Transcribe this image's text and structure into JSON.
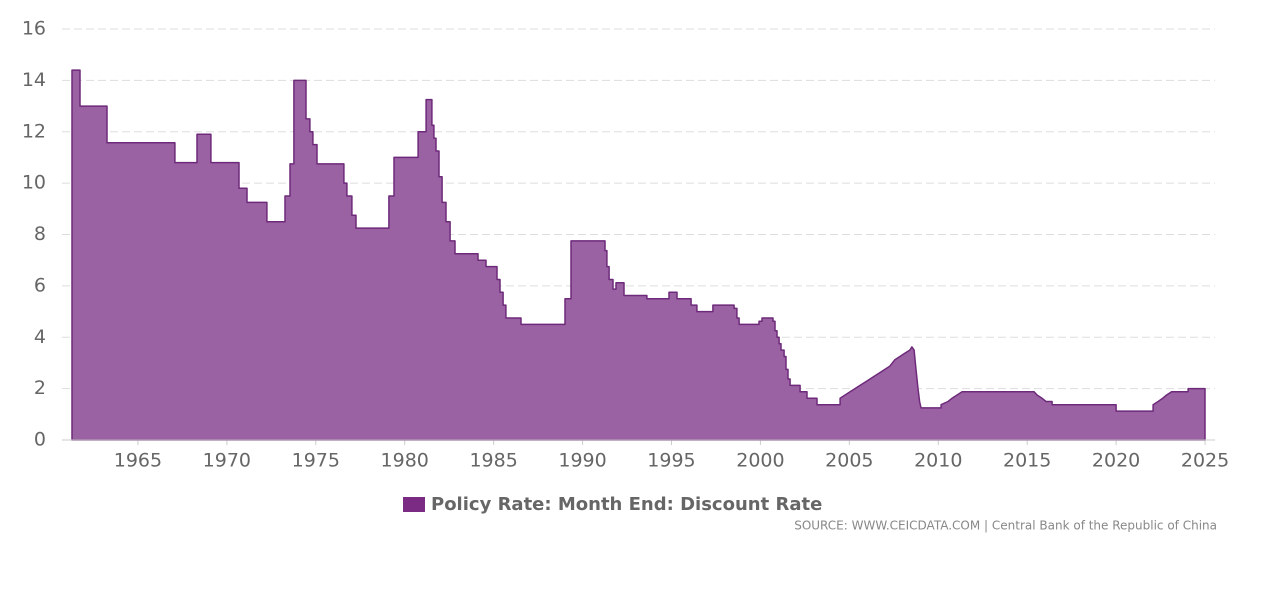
{
  "chart_data": {
    "type": "area",
    "x": [
      1961.29,
      1961.74,
      1961.74,
      1963.26,
      1963.26,
      1967.08,
      1967.08,
      1968.32,
      1968.32,
      1969.1,
      1969.1,
      1970.68,
      1970.68,
      1971.13,
      1971.13,
      1972.25,
      1972.25,
      1973.27,
      1973.27,
      1973.55,
      1973.55,
      1973.77,
      1973.77,
      1974.45,
      1974.45,
      1974.67,
      1974.67,
      1974.84,
      1974.84,
      1975.07,
      1975.07,
      1976.58,
      1976.58,
      1976.75,
      1976.75,
      1977.03,
      1977.03,
      1977.26,
      1977.26,
      1979.11,
      1979.11,
      1979.4,
      1979.4,
      1980.75,
      1980.75,
      1981.2,
      1981.2,
      1981.53,
      1981.53,
      1981.64,
      1981.64,
      1981.76,
      1981.76,
      1981.93,
      1981.93,
      1982.1,
      1982.1,
      1982.32,
      1982.32,
      1982.55,
      1982.55,
      1982.83,
      1982.83,
      1984.12,
      1984.12,
      1984.57,
      1984.57,
      1985.19,
      1985.19,
      1985.36,
      1985.36,
      1985.53,
      1985.53,
      1985.69,
      1985.69,
      1986.54,
      1986.54,
      1989.01,
      1989.01,
      1989.35,
      1989.35,
      1991.26,
      1991.26,
      1991.37,
      1991.37,
      1991.49,
      1991.49,
      1991.71,
      1991.71,
      1991.88,
      1991.88,
      1992.33,
      1992.33,
      1993.62,
      1993.62,
      1994.86,
      1994.86,
      1995.31,
      1995.31,
      1996.1,
      1996.1,
      1996.43,
      1996.43,
      1997.33,
      1997.33,
      1998.52,
      1998.52,
      1998.68,
      1998.68,
      1998.8,
      1998.8,
      1999.92,
      1999.92,
      2000.09,
      2000.09,
      2000.71,
      2000.71,
      2000.82,
      2000.82,
      2000.93,
      2000.93,
      2001.05,
      2001.05,
      2001.16,
      2001.16,
      2001.33,
      2001.33,
      2001.44,
      2001.44,
      2001.55,
      2001.55,
      2001.67,
      2001.67,
      2002.23,
      2002.23,
      2002.62,
      2002.62,
      2003.18,
      2003.18,
      2004.48,
      2004.48,
      2004.76,
      2005.04,
      2005.32,
      2005.6,
      2005.88,
      2006.16,
      2006.44,
      2006.72,
      2007.0,
      2007.28,
      2007.56,
      2007.84,
      2008.12,
      2008.4,
      2008.52,
      2008.64,
      2008.75,
      2008.86,
      2008.95,
      2009.03,
      2010.16,
      2010.16,
      2010.55,
      2010.77,
      2011.06,
      2011.34,
      2015.39,
      2015.55,
      2015.84,
      2016.06,
      2016.4,
      2016.4,
      2020.0,
      2020.0,
      2022.08,
      2022.08,
      2022.36,
      2022.62,
      2022.84,
      2023.12,
      2024.05,
      2024.05,
      2025.0
    ],
    "series": [
      {
        "name": "Policy Rate: Month End: Discount Rate",
        "color": "#7b2b83",
        "fill": "#9b62a3",
        "line": "#6e2a7a",
        "values": [
          14.4,
          14.4,
          13.0,
          13.0,
          11.57,
          11.57,
          10.8,
          10.8,
          11.9,
          11.9,
          10.8,
          10.8,
          9.8,
          9.8,
          9.25,
          9.25,
          8.5,
          8.5,
          9.5,
          9.5,
          10.75,
          10.75,
          14.0,
          14.0,
          12.5,
          12.5,
          12.0,
          12.0,
          11.5,
          11.5,
          10.75,
          10.75,
          10.0,
          10.0,
          9.5,
          9.5,
          8.75,
          8.75,
          8.25,
          8.25,
          9.5,
          9.5,
          11.0,
          11.0,
          12.0,
          12.0,
          13.25,
          13.25,
          12.25,
          12.25,
          11.75,
          11.75,
          11.25,
          11.25,
          10.25,
          10.25,
          9.25,
          9.25,
          8.5,
          8.5,
          7.75,
          7.75,
          7.25,
          7.25,
          7.0,
          7.0,
          6.75,
          6.75,
          6.25,
          6.25,
          5.75,
          5.75,
          5.25,
          5.25,
          4.75,
          4.75,
          4.5,
          4.5,
          5.5,
          5.5,
          7.75,
          7.75,
          7.375,
          7.375,
          6.75,
          6.75,
          6.25,
          6.25,
          5.875,
          5.875,
          6.125,
          6.125,
          5.625,
          5.625,
          5.5,
          5.5,
          5.75,
          5.75,
          5.5,
          5.5,
          5.25,
          5.25,
          5.0,
          5.0,
          5.25,
          5.25,
          5.125,
          5.125,
          4.75,
          4.75,
          4.5,
          4.5,
          4.625,
          4.625,
          4.75,
          4.75,
          4.625,
          4.625,
          4.25,
          4.25,
          4.0,
          4.0,
          3.75,
          3.75,
          3.5,
          3.5,
          3.25,
          3.25,
          2.75,
          2.75,
          2.375,
          2.375,
          2.125,
          2.125,
          1.875,
          1.875,
          1.625,
          1.625,
          1.375,
          1.375,
          1.625,
          1.75,
          1.875,
          2.0,
          2.125,
          2.25,
          2.375,
          2.5,
          2.625,
          2.75,
          2.875,
          3.125,
          3.25,
          3.375,
          3.5,
          3.625,
          3.5,
          2.75,
          2.0,
          1.5,
          1.25,
          1.25,
          1.375,
          1.5,
          1.625,
          1.75,
          1.875,
          1.875,
          1.75,
          1.625,
          1.5,
          1.5,
          1.375,
          1.375,
          1.125,
          1.125,
          1.375,
          1.5,
          1.625,
          1.75,
          1.875,
          1.875,
          2.0,
          2.0
        ]
      }
    ],
    "xlim": [
      1960.73,
      2025.56
    ],
    "xticks": [
      1965,
      1970,
      1975,
      1980,
      1985,
      1990,
      1995,
      2000,
      2005,
      2010,
      2015,
      2020,
      2025
    ],
    "ylim": [
      0,
      16
    ],
    "yticks": [
      0,
      2,
      4,
      6,
      8,
      10,
      12,
      14,
      16
    ],
    "grid": true,
    "source": "SOURCE: WWW.CEICDATA.COM | Central Bank of the Republic of China"
  }
}
